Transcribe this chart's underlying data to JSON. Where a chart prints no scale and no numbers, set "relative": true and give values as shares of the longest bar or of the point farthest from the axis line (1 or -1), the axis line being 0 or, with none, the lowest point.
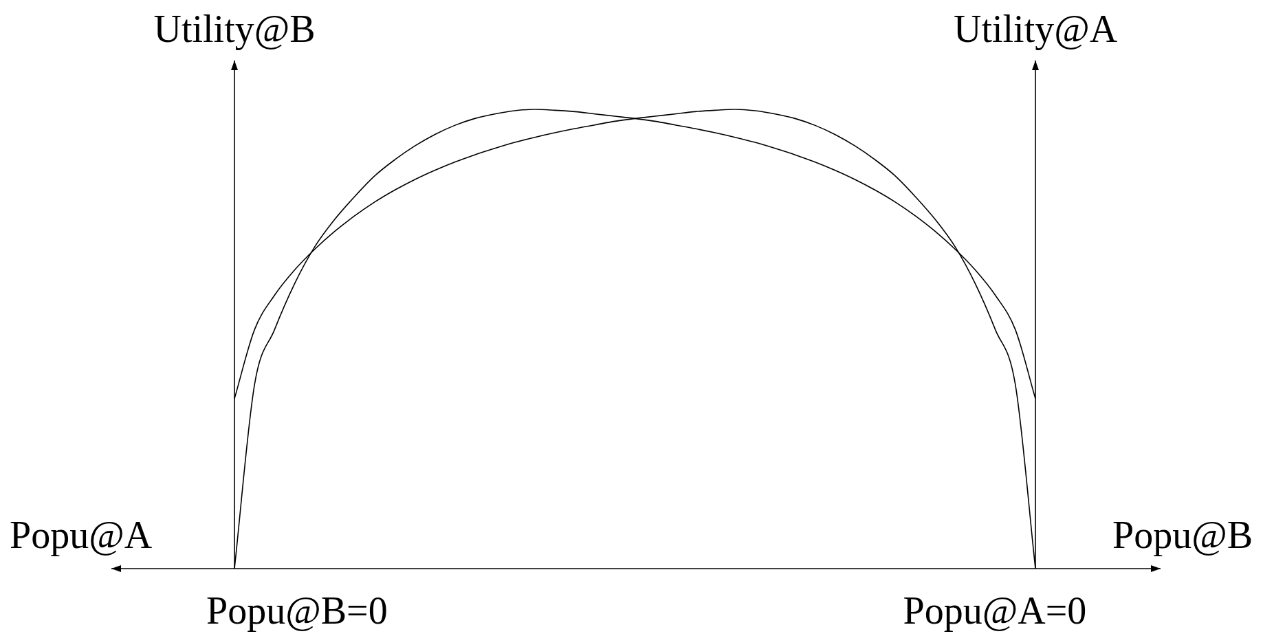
{
  "chart_data": {
    "type": "line",
    "relative": true,
    "legend": false,
    "ylabel": "Utility@B",
    "y2label": "Utility@A",
    "annotations": [
      "Popu@A",
      "Popu@B",
      "Popu@B=0",
      "Popu@A=0"
    ],
    "categories": [
      null,
      null,
      null,
      null,
      null,
      null,
      null,
      null,
      null,
      null,
      null,
      null,
      null,
      null,
      null,
      null,
      null,
      null,
      null,
      null,
      null,
      null,
      null,
      null,
      null,
      null,
      null,
      null,
      null,
      null,
      null,
      null,
      null,
      null,
      null,
      null,
      null,
      null,
      null,
      null,
      null
    ],
    "series": [
      {
        "color": "#000000",
        "values": [
          0,
          0.4,
          0.52,
          0.62,
          0.7,
          0.76,
          0.81,
          0.855,
          0.89,
          0.92,
          0.945,
          0.965,
          0.98,
          0.99,
          0.997,
          1,
          0.998,
          0.995,
          0.99,
          0.985,
          0.98,
          0.974,
          0.966,
          0.958,
          0.949,
          0.939,
          0.928,
          0.915,
          0.901,
          0.885,
          0.867,
          0.847,
          0.824,
          0.798,
          0.768,
          0.734,
          0.695,
          0.65,
          0.595,
          0.52,
          0.37
        ]
      },
      {
        "color": "#000000",
        "values": [
          0.37,
          0.52,
          0.595,
          0.65,
          0.695,
          0.734,
          0.768,
          0.798,
          0.824,
          0.847,
          0.867,
          0.885,
          0.901,
          0.915,
          0.928,
          0.939,
          0.949,
          0.958,
          0.966,
          0.974,
          0.98,
          0.985,
          0.99,
          0.995,
          0.998,
          1,
          0.997,
          0.99,
          0.98,
          0.965,
          0.945,
          0.92,
          0.89,
          0.855,
          0.81,
          0.76,
          0.7,
          0.62,
          0.52,
          0.4,
          0
        ]
      }
    ]
  }
}
